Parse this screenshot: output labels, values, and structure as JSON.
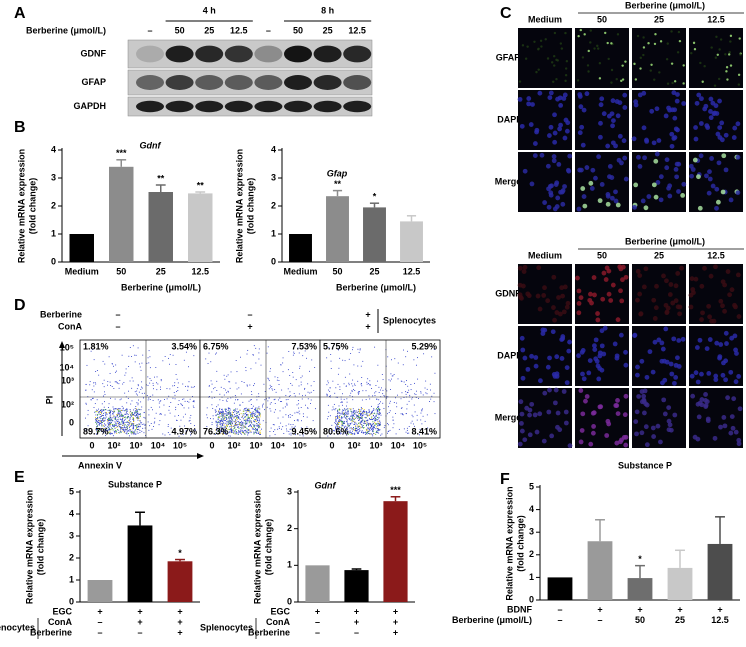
{
  "panels": {
    "A": {
      "label": "A",
      "times": [
        "4 h",
        "8 h"
      ],
      "treatment_label": "Berberine (μmol/L)",
      "lanes": [
        "–",
        "50",
        "25",
        "12.5",
        "–",
        "50",
        "25",
        "12.5"
      ],
      "proteins": [
        "GDNF",
        "GFAP",
        "GAPDH"
      ]
    },
    "B": {
      "label": "B"
    },
    "C": {
      "label": "C",
      "blocks": [
        {
          "group_header": "Berberine (μmol/L)",
          "columns": [
            "Medium",
            "50",
            "25",
            "12.5"
          ],
          "rows": [
            "GFAP",
            "DAPI",
            "Merge"
          ]
        },
        {
          "group_header": "Berberine (μmol/L)",
          "columns": [
            "Medium",
            "50",
            "25",
            "12.5"
          ],
          "rows": [
            "GDNF",
            "DAPI",
            "Merge"
          ]
        }
      ]
    },
    "D": {
      "label": "D",
      "conditions": [
        {
          "name": "Berberine",
          "marks": [
            "–",
            "–",
            "+"
          ]
        },
        {
          "name": "ConA",
          "marks": [
            "–",
            "+",
            "+"
          ]
        }
      ],
      "group_label": "Splenocytes",
      "ylabel": "PI",
      "xlabel": "Annexin V",
      "yticks": [
        "10⁵",
        "10⁴",
        "10³",
        "10²",
        "0"
      ],
      "xticks": [
        "0",
        "10²",
        "10³",
        "10⁴",
        "10⁵"
      ],
      "quadrants": [
        [
          "1.81%",
          "3.54%",
          "89.7%",
          "4.97%"
        ],
        [
          "6.75%",
          "7.53%",
          "76.3%",
          "9.45%"
        ],
        [
          "5.75%",
          "5.29%",
          "80.6%",
          "8.41%"
        ]
      ]
    },
    "E": {
      "label": "E"
    },
    "F": {
      "label": "F"
    }
  },
  "chart_data": [
    {
      "type": "bar",
      "title": "Gdnf",
      "title_italic": true,
      "ylabel": [
        "Relative mRNA expression",
        "(fold change)"
      ],
      "xlabel": "Berberine (μmol/L)",
      "categories": [
        "Medium",
        "50",
        "25",
        "12.5"
      ],
      "values": [
        1,
        3.4,
        2.5,
        2.45
      ],
      "errors": [
        null,
        0.25,
        0.25,
        0.05
      ],
      "annotations": [
        null,
        "***",
        "**",
        "**"
      ],
      "colors": [
        "#000000",
        "#8c8c8c",
        "#6b6b6b",
        "#c8c8c8"
      ],
      "ylim": [
        0,
        4
      ],
      "yticks": [
        0,
        1,
        2,
        3,
        4
      ]
    },
    {
      "type": "bar",
      "title": "Gfap",
      "title_italic": true,
      "ylabel": [
        "Relative mRNA expression",
        "(fold change)"
      ],
      "xlabel": "Berberine (μmol/L)",
      "categories": [
        "Medium",
        "50",
        "25",
        "12.5"
      ],
      "values": [
        1,
        2.35,
        1.95,
        1.45
      ],
      "errors": [
        null,
        0.2,
        0.15,
        0.2
      ],
      "annotations": [
        null,
        "**",
        "*",
        null
      ],
      "colors": [
        "#000000",
        "#8c8c8c",
        "#6b6b6b",
        "#c8c8c8"
      ],
      "ylim": [
        0,
        4
      ],
      "yticks": [
        0,
        1,
        2,
        3,
        4
      ]
    },
    {
      "type": "bar",
      "title": "Substance P",
      "title_italic": false,
      "ylabel": [
        "Relative mRNA expression",
        "(fold change)"
      ],
      "values": [
        1,
        3.48,
        1.85
      ],
      "errors": [
        null,
        0.6,
        0.08
      ],
      "annotations": [
        null,
        null,
        "*"
      ],
      "colors": [
        "#9a9a9a",
        "#000000",
        "#8b1a1a"
      ],
      "ylim": [
        0,
        5
      ],
      "yticks": [
        0,
        1,
        2,
        3,
        4,
        5
      ],
      "conditions": [
        {
          "name": "EGC",
          "marks": [
            "+",
            "+",
            "+"
          ]
        },
        {
          "name": "ConA",
          "marks": [
            "–",
            "+",
            "+"
          ]
        },
        {
          "name": "Berberine",
          "marks": [
            "–",
            "–",
            "+"
          ]
        }
      ],
      "condition_group": "Splenocytes"
    },
    {
      "type": "bar",
      "title": "Gdnf",
      "title_italic": true,
      "ylabel": [
        "Relative mRNA expression",
        "(fold change)"
      ],
      "values": [
        1,
        0.87,
        2.75
      ],
      "errors": [
        null,
        0.03,
        0.12
      ],
      "annotations": [
        null,
        null,
        "***"
      ],
      "colors": [
        "#9a9a9a",
        "#000000",
        "#8b1a1a"
      ],
      "ylim": [
        0,
        3
      ],
      "yticks": [
        0,
        1,
        2,
        3
      ],
      "conditions": [
        {
          "name": "EGC",
          "marks": [
            "+",
            "+",
            "+"
          ]
        },
        {
          "name": "ConA",
          "marks": [
            "–",
            "+",
            "+"
          ]
        },
        {
          "name": "Berberine",
          "marks": [
            "–",
            "–",
            "+"
          ]
        }
      ],
      "condition_group": "Splenocytes"
    },
    {
      "type": "bar",
      "title": "Substance P",
      "title_italic": false,
      "ylabel": [
        "Relative mRNA expression",
        "(fold change)"
      ],
      "values": [
        1,
        2.6,
        0.97,
        1.42,
        2.48
      ],
      "errors": [
        null,
        0.95,
        0.55,
        0.78,
        1.2
      ],
      "annotations": [
        null,
        null,
        "*",
        null,
        null
      ],
      "colors": [
        "#000000",
        "#9a9a9a",
        "#6e6e6e",
        "#c8c8c8",
        "#4d4d4d"
      ],
      "ylim": [
        0,
        5
      ],
      "yticks": [
        0,
        1,
        2,
        3,
        4,
        5
      ],
      "conditions": [
        {
          "name": "BDNF",
          "marks": [
            "–",
            "+",
            "+",
            "+",
            "+"
          ]
        },
        {
          "name": "Berberine (μmol/L)",
          "marks": [
            "–",
            "–",
            "50",
            "25",
            "12.5"
          ]
        }
      ]
    }
  ]
}
